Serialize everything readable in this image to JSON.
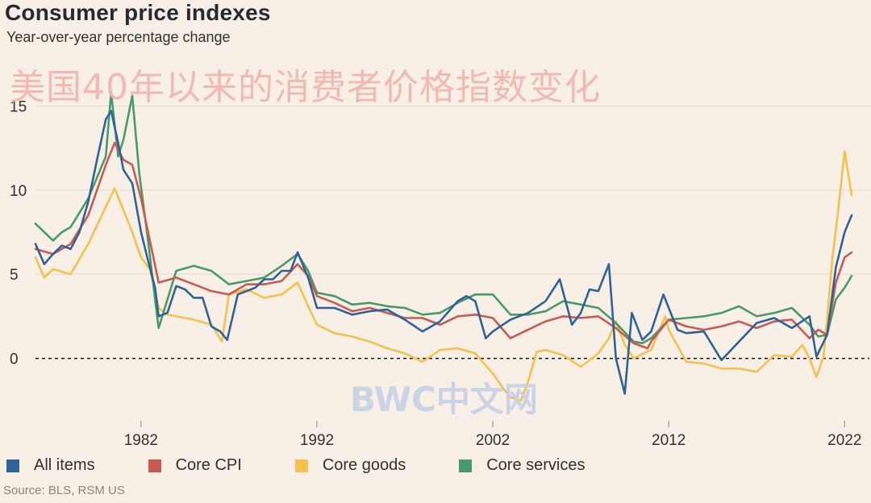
{
  "header": {
    "title": "Consumer price indexes",
    "subtitle": "Year-over-year percentage change"
  },
  "overlay_text": "美国40年以来的消费者价格指数变化",
  "watermark": "BWC中文网",
  "source": "Source: BLS, RSM US",
  "colors": {
    "all_items": "#2f6395",
    "core_cpi": "#c85a54",
    "core_goods": "#f4c04f",
    "core_services": "#4a9a69",
    "grid": "#e3dbd1",
    "zero_line": "#111111",
    "tick_text": "#33302e"
  },
  "chart_data": {
    "type": "line",
    "title": "Consumer price indexes",
    "subtitle": "Year-over-year percentage change",
    "xlabel": "",
    "ylabel": "",
    "xlim": [
      1976,
      2023.5
    ],
    "ylim": [
      -3.8,
      16.5
    ],
    "y_ticks": [
      0,
      5,
      10,
      15
    ],
    "y_tick_labels": [
      "0",
      "5",
      "10",
      "15"
    ],
    "x_ticks": [
      1982,
      1992,
      2002,
      2012,
      2022
    ],
    "x_tick_labels": [
      "1982",
      "1992",
      "2002",
      "2012",
      "2022"
    ],
    "zero_line": "dashed",
    "legend_position": "bottom",
    "series": [
      {
        "name": "All items",
        "x": [
          1976,
          1976.5,
          1977,
          1977.5,
          1978,
          1978.5,
          1979,
          1979.5,
          1980,
          1980.3,
          1980.7,
          1981,
          1981.5,
          1982,
          1982.4,
          1982.8,
          1983,
          1983.5,
          1984,
          1984.5,
          1985,
          1985.5,
          1986,
          1986.5,
          1986.9,
          1987.5,
          1988,
          1988.5,
          1989,
          1989.5,
          1990,
          1990.5,
          1990.9,
          1991.5,
          1992,
          1993,
          1994,
          1995,
          1996,
          1997,
          1998,
          1999,
          2000,
          2000.5,
          2001,
          2001.6,
          2002,
          2003,
          2004,
          2005,
          2005.8,
          2006.5,
          2007,
          2007.5,
          2008,
          2008.6,
          2009,
          2009.5,
          2009.9,
          2010.5,
          2011,
          2011.7,
          2012,
          2012.5,
          2013,
          2014,
          2015,
          2016,
          2017,
          2018,
          2019,
          2020,
          2020.4,
          2021,
          2021.5,
          2022,
          2022.4
        ],
        "values": [
          6.8,
          5.6,
          6.2,
          6.7,
          6.5,
          7.5,
          9.3,
          11.8,
          14.2,
          14.7,
          12.8,
          11.2,
          10.4,
          7.5,
          5.8,
          4.2,
          2.5,
          2.7,
          4.3,
          4.1,
          3.6,
          3.6,
          1.9,
          1.6,
          1.1,
          3.8,
          4.0,
          4.2,
          4.7,
          4.7,
          5.2,
          5.2,
          6.3,
          4.8,
          3.0,
          3.0,
          2.6,
          2.8,
          2.9,
          2.3,
          1.6,
          2.2,
          3.4,
          3.7,
          3.4,
          1.2,
          1.6,
          2.3,
          2.7,
          3.4,
          4.7,
          2.0,
          2.7,
          4.1,
          4.0,
          5.6,
          0.0,
          -2.1,
          2.7,
          1.1,
          1.6,
          3.8,
          3.0,
          1.7,
          1.5,
          1.6,
          -0.1,
          1.0,
          2.1,
          2.4,
          1.8,
          2.5,
          0.1,
          1.4,
          5.4,
          7.5,
          8.5
        ]
      },
      {
        "name": "Core CPI",
        "x": [
          1976,
          1977,
          1978,
          1979,
          1980,
          1980.5,
          1981,
          1981.5,
          1982,
          1982.5,
          1983,
          1984,
          1985,
          1986,
          1987,
          1988,
          1989,
          1990,
          1990.9,
          1991.5,
          1992,
          1993,
          1994,
          1995,
          1996,
          1997,
          1998,
          1999,
          2000,
          2001,
          2002,
          2003,
          2004,
          2005,
          2006,
          2007,
          2008,
          2009,
          2010,
          2010.8,
          2011,
          2012,
          2013,
          2014,
          2015,
          2016,
          2017,
          2018,
          2019,
          2020,
          2020.5,
          2021,
          2021.5,
          2022,
          2022.4
        ],
        "values": [
          6.5,
          6.2,
          6.8,
          8.5,
          11.5,
          12.8,
          11.8,
          11.5,
          9.5,
          7.0,
          4.5,
          4.8,
          4.4,
          4.0,
          3.8,
          4.4,
          4.4,
          4.6,
          5.6,
          4.9,
          3.7,
          3.3,
          2.8,
          3.0,
          2.7,
          2.4,
          2.4,
          2.0,
          2.5,
          2.6,
          2.4,
          1.2,
          1.7,
          2.2,
          2.5,
          2.4,
          2.5,
          1.8,
          0.9,
          0.6,
          1.0,
          2.3,
          1.9,
          1.7,
          1.9,
          2.2,
          1.8,
          2.2,
          2.3,
          1.2,
          1.7,
          1.4,
          4.5,
          6.0,
          6.3
        ]
      },
      {
        "name": "Core goods",
        "x": [
          1976,
          1976.5,
          1977,
          1978,
          1979,
          1980,
          1980.5,
          1981,
          1981.5,
          1982,
          1982.5,
          1983,
          1983.5,
          1984,
          1985,
          1986,
          1986.6,
          1987,
          1988,
          1989,
          1990,
          1990.9,
          1991.5,
          1992,
          1993,
          1994,
          1995,
          1996,
          1997,
          1998,
          1999,
          2000,
          2001,
          2002,
          2002.6,
          2003,
          2003.6,
          2004,
          2004.5,
          2005,
          2006,
          2007,
          2008,
          2008.6,
          2009,
          2009.5,
          2010,
          2011,
          2011.8,
          2012,
          2013,
          2014,
          2015,
          2016,
          2017,
          2018,
          2019,
          2019.6,
          2020,
          2020.4,
          2020.8,
          2021,
          2021.3,
          2021.6,
          2022,
          2022.2,
          2022.4
        ],
        "values": [
          6.0,
          4.8,
          5.3,
          5.0,
          6.8,
          9.0,
          10.1,
          8.8,
          7.5,
          6.0,
          5.3,
          3.0,
          2.6,
          2.5,
          2.3,
          2.0,
          1.0,
          3.8,
          4.1,
          3.6,
          3.8,
          4.5,
          3.1,
          2.0,
          1.5,
          1.3,
          1.0,
          0.6,
          0.3,
          -0.2,
          0.5,
          0.6,
          0.3,
          -0.9,
          -1.8,
          -2.3,
          -2.5,
          -1.4,
          0.4,
          0.5,
          0.2,
          -0.5,
          0.3,
          1.2,
          2.2,
          0.8,
          0.0,
          0.5,
          2.5,
          1.7,
          -0.2,
          -0.3,
          -0.6,
          -0.6,
          -0.8,
          0.2,
          0.1,
          0.8,
          0.0,
          -1.1,
          0.1,
          2.3,
          5.9,
          8.5,
          12.3,
          11.0,
          9.7
        ]
      },
      {
        "name": "Core services",
        "x": [
          1976,
          1977,
          1977.5,
          1978,
          1979,
          1980,
          1980.3,
          1980.7,
          1981,
          1981.5,
          1981.9,
          1982.4,
          1982.8,
          1983,
          1983.5,
          1984,
          1985,
          1986,
          1987,
          1988,
          1989,
          1990,
          1990.9,
          1991.5,
          1992,
          1993,
          1994,
          1995,
          1996,
          1997,
          1998,
          1999,
          2000,
          2001,
          2002,
          2003,
          2004,
          2005,
          2006,
          2007,
          2008,
          2009,
          2010,
          2010.5,
          2011,
          2012,
          2013,
          2014,
          2015,
          2016,
          2017,
          2018,
          2019,
          2020,
          2020.5,
          2021,
          2021.5,
          2022,
          2022.4
        ],
        "values": [
          8.0,
          7.0,
          7.5,
          7.8,
          9.5,
          12.0,
          15.8,
          12.0,
          13.0,
          15.6,
          11.0,
          7.0,
          3.5,
          1.8,
          3.5,
          5.2,
          5.5,
          5.2,
          4.4,
          4.6,
          4.8,
          5.5,
          6.2,
          5.2,
          3.9,
          3.7,
          3.2,
          3.3,
          3.1,
          3.0,
          2.6,
          2.7,
          3.3,
          3.8,
          3.8,
          2.6,
          2.6,
          2.8,
          3.4,
          3.2,
          3.0,
          2.1,
          1.0,
          0.9,
          1.2,
          2.3,
          2.4,
          2.5,
          2.7,
          3.1,
          2.5,
          2.7,
          3.0,
          2.0,
          1.3,
          1.4,
          3.5,
          4.2,
          4.9
        ]
      }
    ]
  },
  "legend": [
    {
      "label": "All items"
    },
    {
      "label": "Core CPI"
    },
    {
      "label": "Core goods"
    },
    {
      "label": "Core services"
    }
  ]
}
